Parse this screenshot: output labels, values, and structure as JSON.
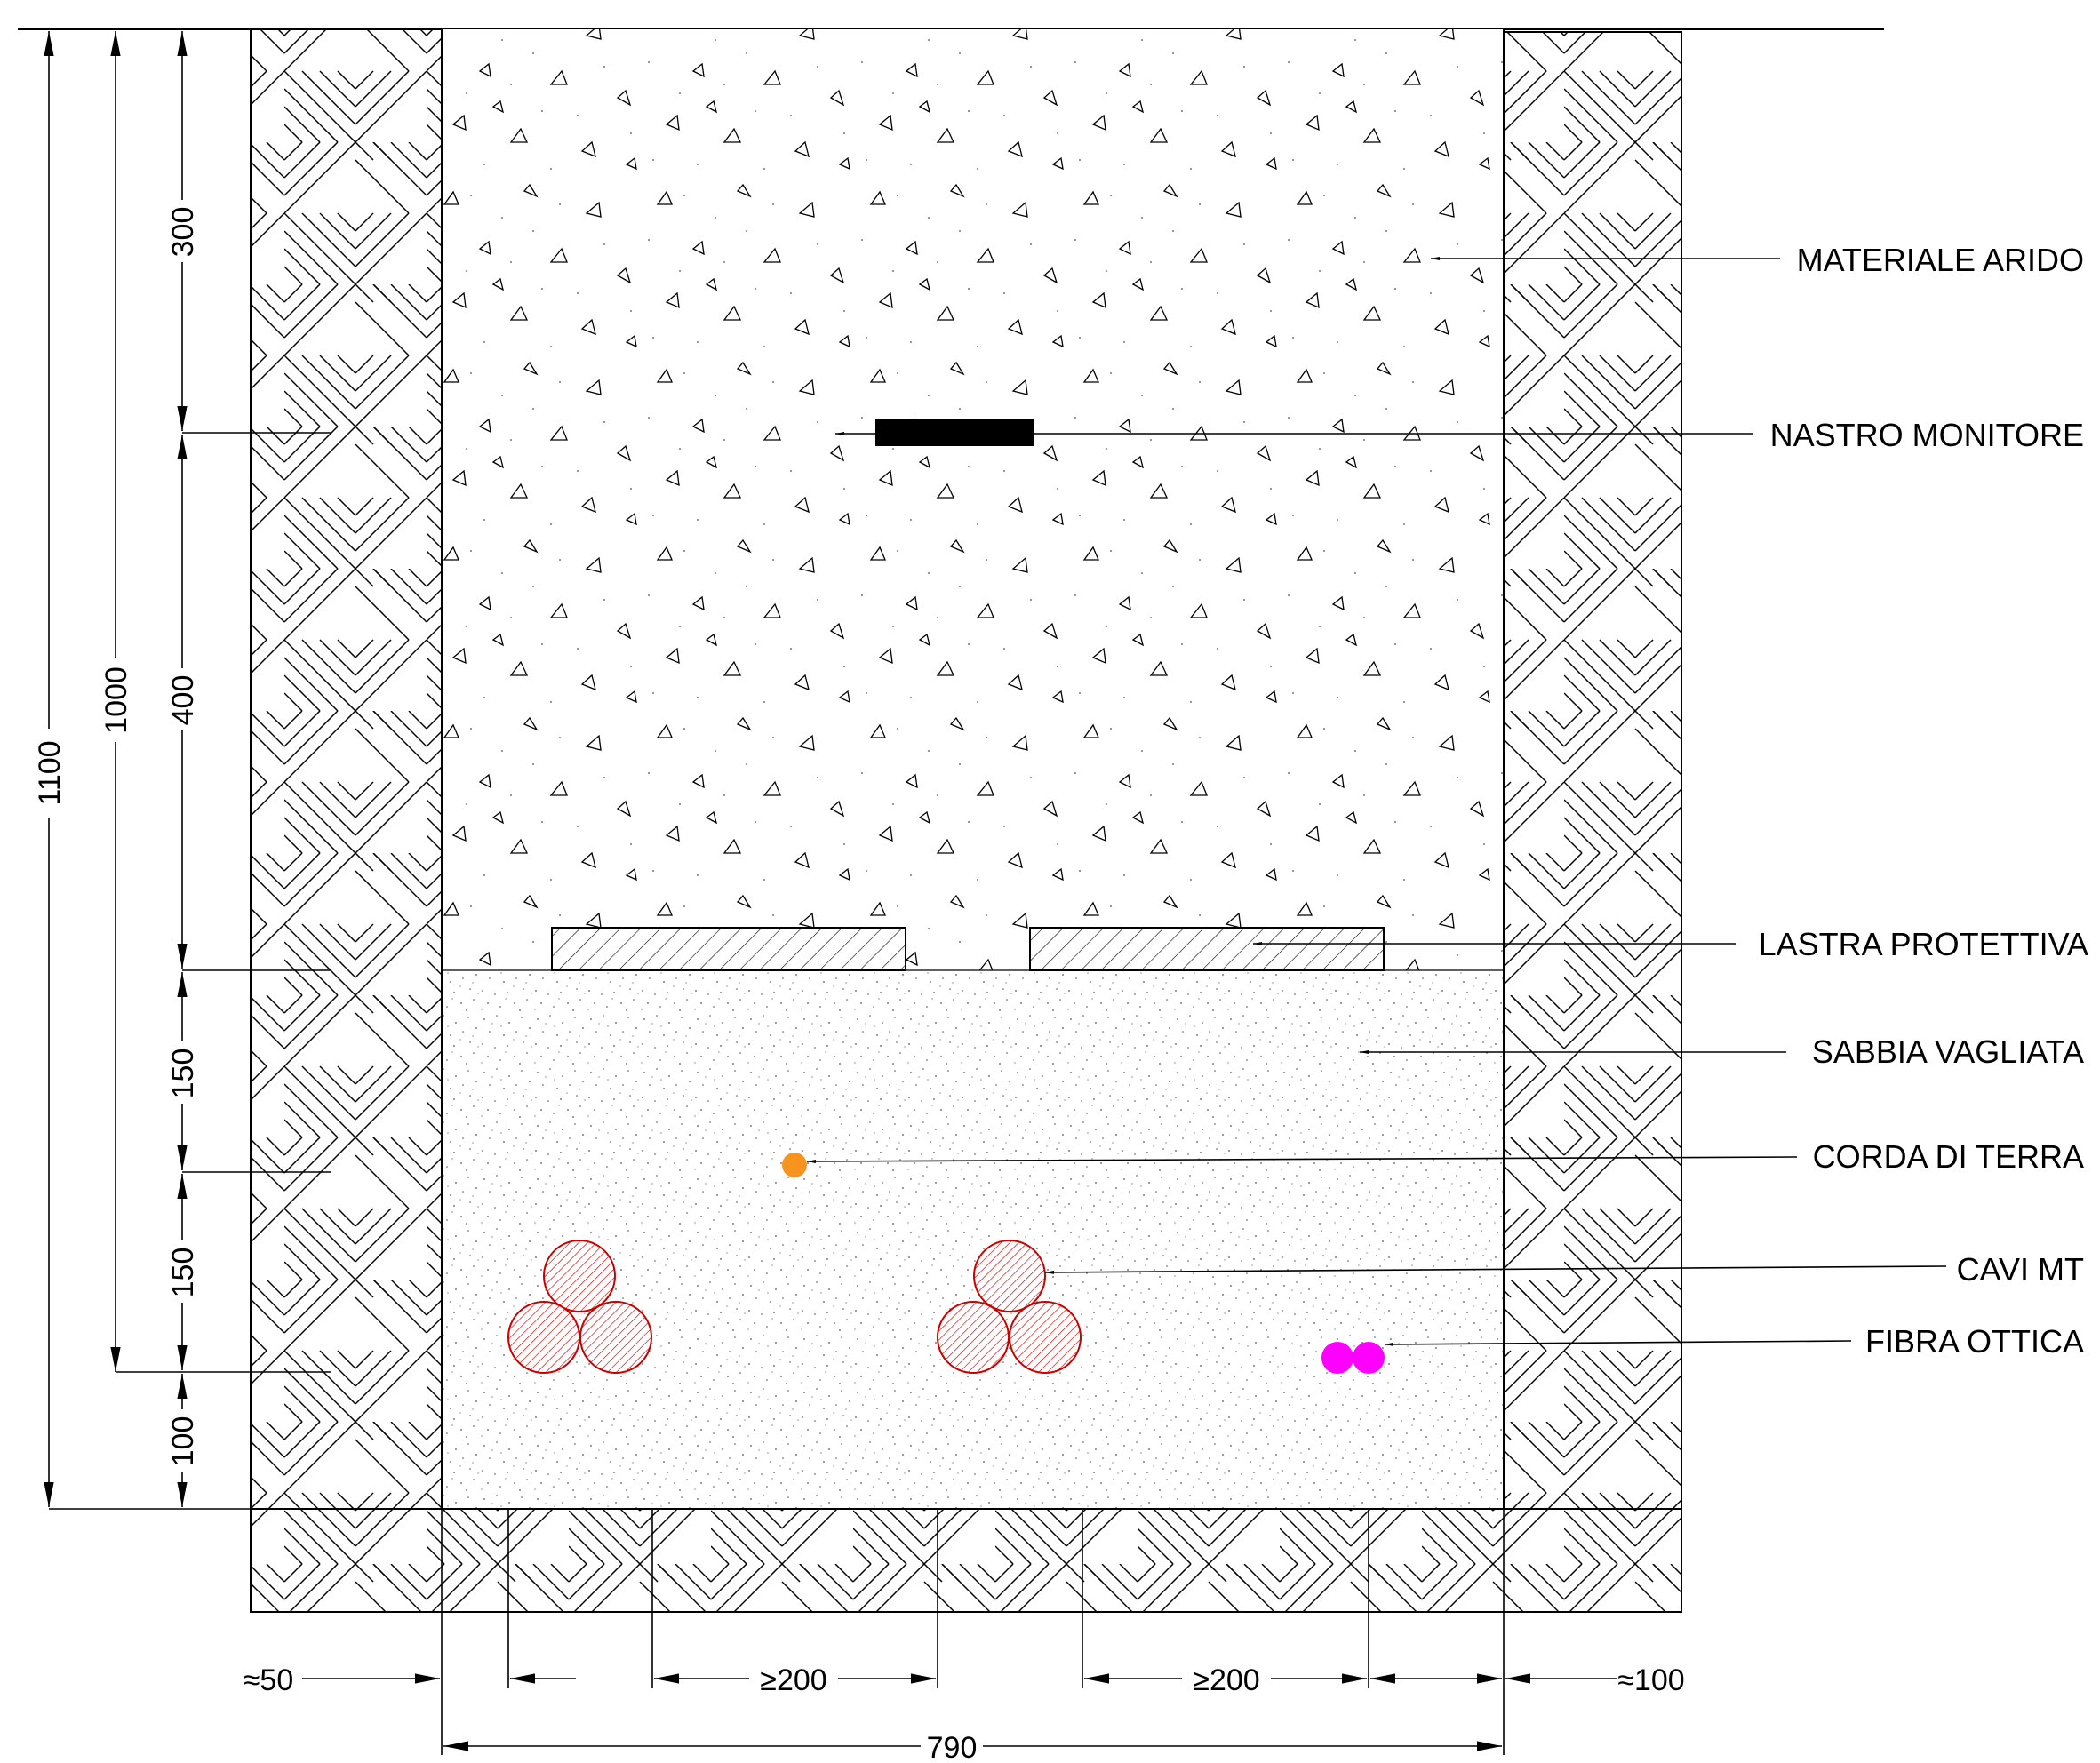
{
  "labels": {
    "materiale_arido": "MATERIALE ARIDO",
    "nastro_monitore": "NASTRO MONITORE",
    "lastra_protettiva": "LASTRA PROTETTIVA",
    "sabbia_vagliata": "SABBIA VAGLIATA",
    "corda_di_terra": "CORDA DI TERRA",
    "cavi_mt": "CAVI MT",
    "fibra_ottica": "FIBRA OTTICA"
  },
  "vertical_dims": {
    "total_1100": "1100",
    "total_1000": "1000",
    "seg_300": "300",
    "seg_400": "400",
    "seg_150_upper": "150",
    "seg_150_lower": "150",
    "seg_100": "100"
  },
  "horizontal_dims": {
    "left_margin": "≈50",
    "gap_left": "≥200",
    "gap_right": "≥200",
    "right_margin": "≈100",
    "trench_width": "790"
  },
  "colors": {
    "cable_mt": "#cc0000",
    "earth_rope": "#f7941d",
    "optical_fiber": "#ff00ff"
  }
}
